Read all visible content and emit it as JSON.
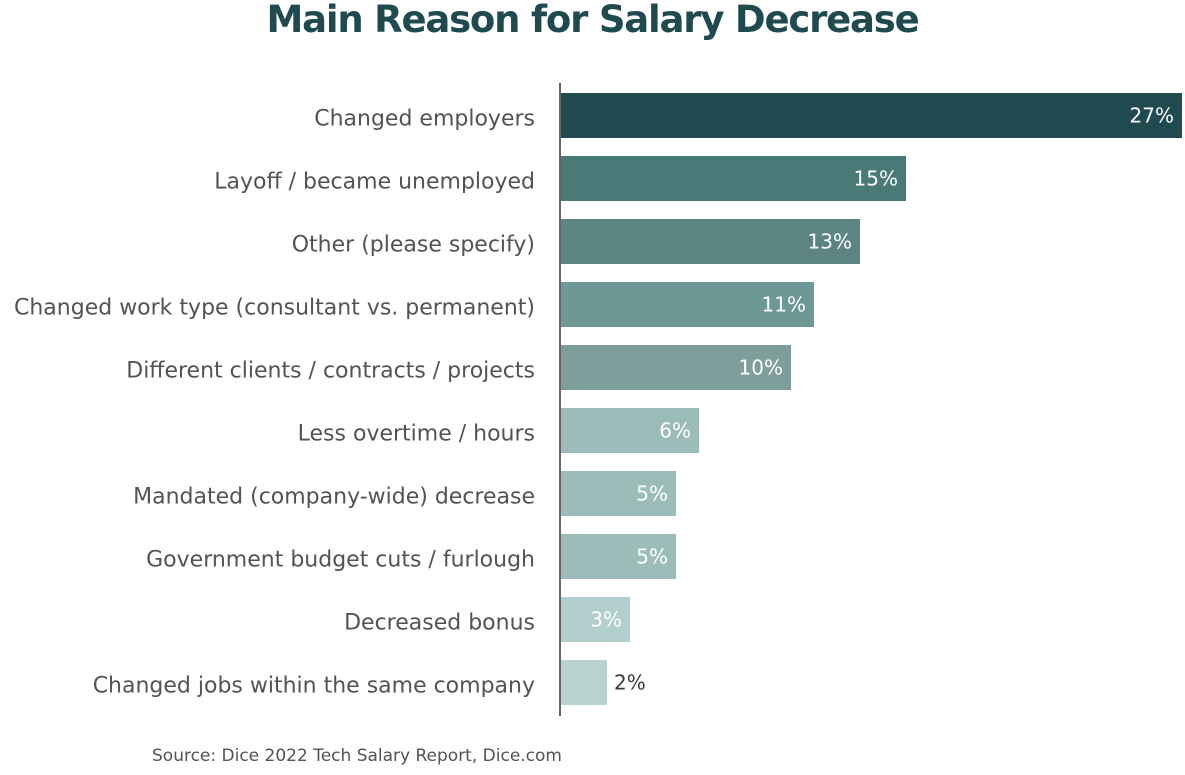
{
  "chart_data": {
    "type": "bar",
    "orientation": "horizontal",
    "title": "Main Reason for Salary Decrease",
    "categories": [
      "Changed employers",
      "Layoff / became unemployed",
      "Other (please specify)",
      "Changed work type (consultant vs. permanent)",
      "Different clients / contracts / projects",
      "Less overtime / hours",
      "Mandated (company-wide) decrease",
      "Government budget cuts / furlough",
      "Decreased bonus",
      "Changed jobs within the same company"
    ],
    "values": [
      27,
      15,
      13,
      11,
      10,
      6,
      5,
      5,
      3,
      2
    ],
    "value_labels": [
      "27%",
      "15%",
      "13%",
      "11%",
      "10%",
      "6%",
      "5%",
      "5%",
      "3%",
      "2%"
    ],
    "colors": [
      "#1f4a50",
      "#4a7a78",
      "#5b8483",
      "#6c9896",
      "#7e9e9c",
      "#9cbcba",
      "#9cbcba",
      "#9cbcba",
      "#b3cfcd",
      "#b9d2cf"
    ],
    "label_colors": [
      "#ffffff",
      "#ffffff",
      "#ffffff",
      "#ffffff",
      "#ffffff",
      "#ffffff",
      "#ffffff",
      "#ffffff",
      "#ffffff",
      "#3a3a3a"
    ],
    "xlim": [
      0,
      27
    ],
    "grid": false,
    "legend": "none"
  },
  "source": "Source: Dice 2022 Tech Salary Report, Dice.com"
}
